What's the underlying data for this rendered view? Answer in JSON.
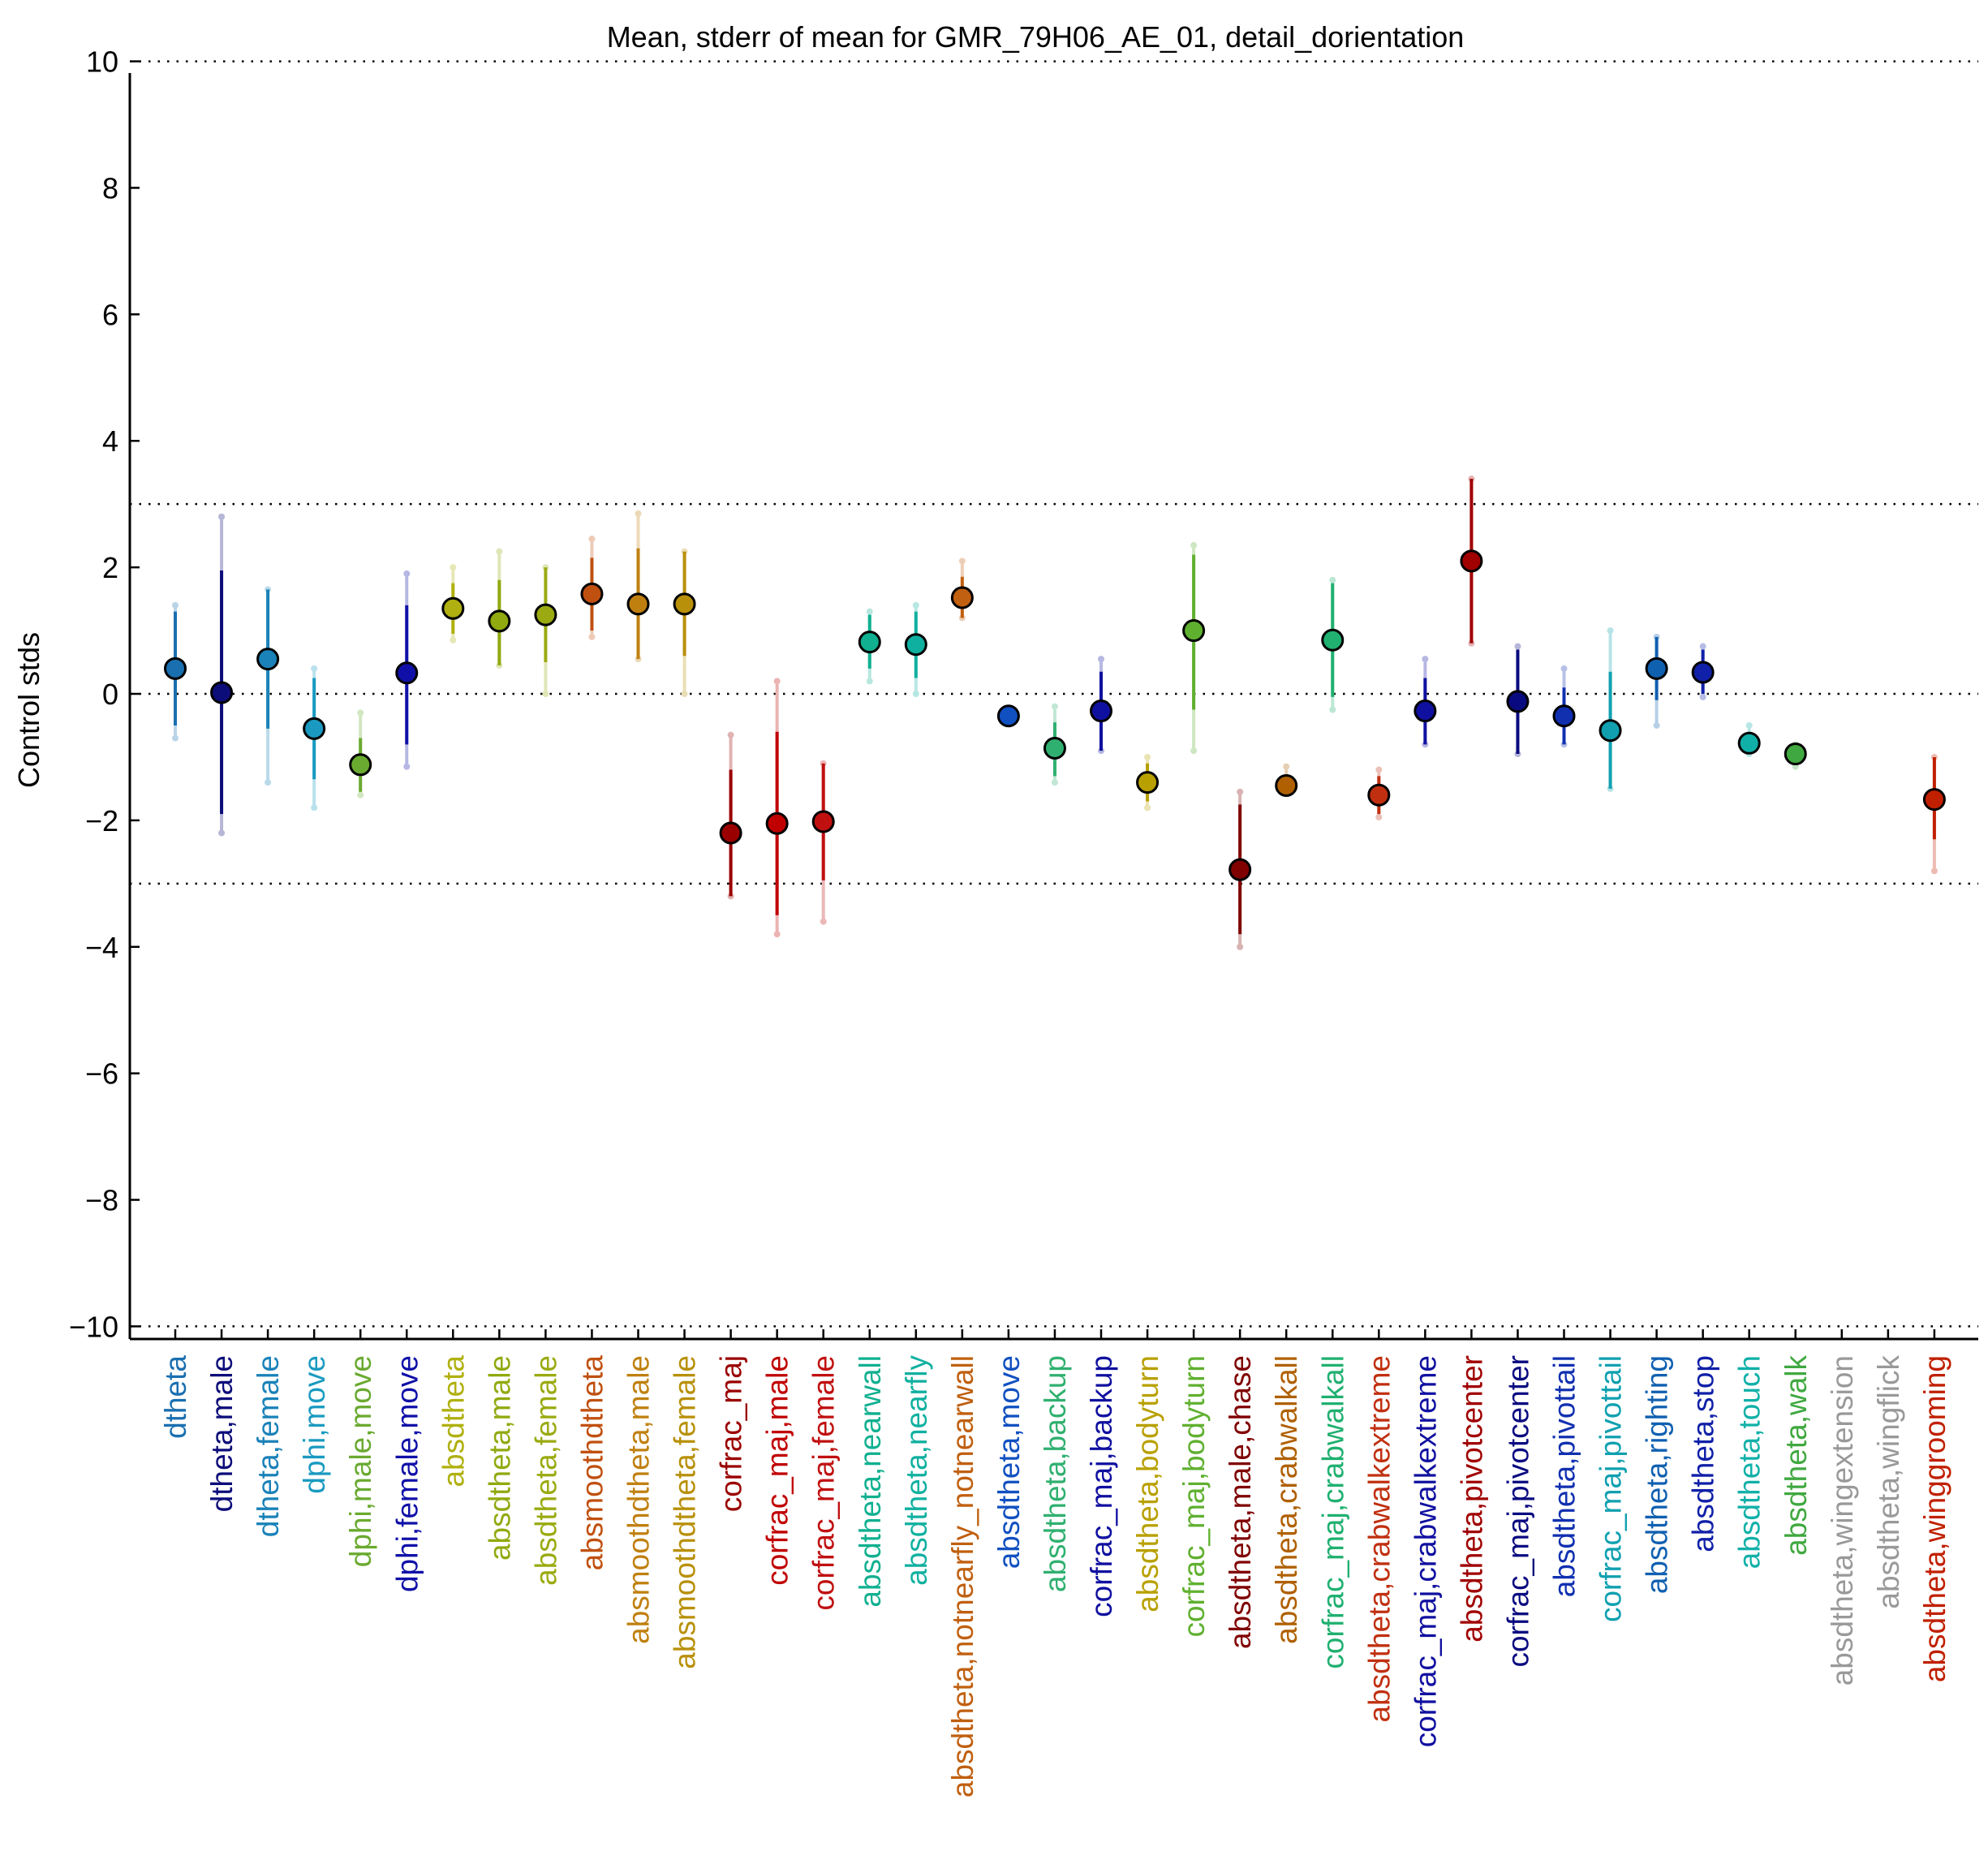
{
  "chart_data": {
    "type": "scatter",
    "title": "Mean, stderr of mean for GMR_79H06_AE_01, detail_dorientation",
    "xlabel": "",
    "ylabel": "Control stds",
    "ylim": [
      -10.2,
      10.2
    ],
    "yticks": [
      10,
      8,
      6,
      4,
      2,
      0,
      -2,
      -4,
      -6,
      -8,
      -10
    ],
    "ytick_labels": [
      "10",
      "8",
      "6",
      "4",
      "2",
      "0",
      "−2",
      "−4",
      "−6",
      "−8",
      "−10"
    ],
    "reference_lines": [
      10,
      3,
      0,
      -3,
      -10
    ],
    "grid": false,
    "points": [
      {
        "label": "dtheta",
        "color": "#1a6fb0",
        "mean": 0.4,
        "se_lo": -0.5,
        "se_hi": 1.3,
        "ci_lo": -0.7,
        "ci_hi": 1.4
      },
      {
        "label": "dtheta,male",
        "color": "#0d0d7a",
        "mean": 0.02,
        "se_lo": -1.9,
        "se_hi": 1.95,
        "ci_lo": -2.2,
        "ci_hi": 2.8
      },
      {
        "label": "dtheta,female",
        "color": "#1a82b8",
        "mean": 0.55,
        "se_lo": -0.55,
        "se_hi": 1.65,
        "ci_lo": -1.4,
        "ci_hi": 1.65
      },
      {
        "label": "dphi,move",
        "color": "#1a9ac0",
        "mean": -0.55,
        "se_lo": -1.35,
        "se_hi": 0.25,
        "ci_lo": -1.8,
        "ci_hi": 0.4
      },
      {
        "label": "dphi,male,move",
        "color": "#6aaa30",
        "mean": -1.12,
        "se_lo": -1.55,
        "se_hi": -0.7,
        "ci_lo": -1.6,
        "ci_hi": -0.3
      },
      {
        "label": "dphi,female,move",
        "color": "#1010a8",
        "mean": 0.33,
        "se_lo": -0.8,
        "se_hi": 1.4,
        "ci_lo": -1.15,
        "ci_hi": 1.9
      },
      {
        "label": "absdtheta",
        "color": "#b0b010",
        "mean": 1.35,
        "se_lo": 0.95,
        "se_hi": 1.75,
        "ci_lo": 0.85,
        "ci_hi": 2.0
      },
      {
        "label": "absdtheta,male",
        "color": "#90aa10",
        "mean": 1.15,
        "se_lo": 0.45,
        "se_hi": 1.8,
        "ci_lo": 0.45,
        "ci_hi": 2.25
      },
      {
        "label": "absdtheta,female",
        "color": "#9aaa10",
        "mean": 1.25,
        "se_lo": 0.5,
        "se_hi": 2.0,
        "ci_lo": 0.0,
        "ci_hi": 2.0
      },
      {
        "label": "absmoothdtheta",
        "color": "#c05010",
        "mean": 1.58,
        "se_lo": 1.0,
        "se_hi": 2.15,
        "ci_lo": 0.9,
        "ci_hi": 2.45
      },
      {
        "label": "absmoothdtheta,male",
        "color": "#c08010",
        "mean": 1.42,
        "se_lo": 0.55,
        "se_hi": 2.3,
        "ci_lo": 0.55,
        "ci_hi": 2.85
      },
      {
        "label": "absmoothdtheta,female",
        "color": "#b8900a",
        "mean": 1.42,
        "se_lo": 0.6,
        "se_hi": 2.25,
        "ci_lo": 0.0,
        "ci_hi": 2.25
      },
      {
        "label": "corfrac_maj",
        "color": "#9a0000",
        "mean": -2.2,
        "se_lo": -3.2,
        "se_hi": -1.2,
        "ci_lo": -3.2,
        "ci_hi": -0.65
      },
      {
        "label": "corfrac_maj,male",
        "color": "#c00000",
        "mean": -2.05,
        "se_lo": -3.5,
        "se_hi": -0.6,
        "ci_lo": -3.8,
        "ci_hi": 0.2
      },
      {
        "label": "corfrac_maj,female",
        "color": "#c01010",
        "mean": -2.02,
        "se_lo": -2.95,
        "se_hi": -1.1,
        "ci_lo": -3.6,
        "ci_hi": -1.1
      },
      {
        "label": "absdtheta,nearwall",
        "color": "#10b090",
        "mean": 0.82,
        "se_lo": 0.4,
        "se_hi": 1.25,
        "ci_lo": 0.2,
        "ci_hi": 1.3
      },
      {
        "label": "absdtheta,nearfly",
        "color": "#10b0a0",
        "mean": 0.78,
        "se_lo": 0.25,
        "se_hi": 1.3,
        "ci_lo": 0.0,
        "ci_hi": 1.4
      },
      {
        "label": "absdtheta,notnearfly_notnearwall",
        "color": "#c06010",
        "mean": 1.52,
        "se_lo": 1.2,
        "se_hi": 1.85,
        "ci_lo": 1.2,
        "ci_hi": 2.1
      },
      {
        "label": "absdtheta,move",
        "color": "#1050c0",
        "mean": -0.35,
        "se_lo": -0.4,
        "se_hi": -0.3,
        "ci_lo": -0.4,
        "ci_hi": -0.3
      },
      {
        "label": "absdtheta,backup",
        "color": "#30b070",
        "mean": -0.86,
        "se_lo": -1.3,
        "se_hi": -0.45,
        "ci_lo": -1.4,
        "ci_hi": -0.2
      },
      {
        "label": "corfrac_maj,backup",
        "color": "#1010a0",
        "mean": -0.27,
        "se_lo": -0.9,
        "se_hi": 0.35,
        "ci_lo": -0.9,
        "ci_hi": 0.55
      },
      {
        "label": "absdtheta,bodyturn",
        "color": "#b8a000",
        "mean": -1.4,
        "se_lo": -1.7,
        "se_hi": -1.1,
        "ci_lo": -1.8,
        "ci_hi": -1.0
      },
      {
        "label": "corfrac_maj,bodyturn",
        "color": "#60b030",
        "mean": 1.0,
        "se_lo": -0.25,
        "se_hi": 2.2,
        "ci_lo": -0.9,
        "ci_hi": 2.35
      },
      {
        "label": "absdtheta,male,chase",
        "color": "#800000",
        "mean": -2.78,
        "se_lo": -3.8,
        "se_hi": -1.75,
        "ci_lo": -4.0,
        "ci_hi": -1.55
      },
      {
        "label": "absdtheta,crabwalkall",
        "color": "#b06000",
        "mean": -1.45,
        "se_lo": -1.55,
        "se_hi": -1.35,
        "ci_lo": -1.55,
        "ci_hi": -1.15
      },
      {
        "label": "corfrac_maj,crabwalkall",
        "color": "#20b070",
        "mean": 0.85,
        "se_lo": -0.05,
        "se_hi": 1.75,
        "ci_lo": -0.25,
        "ci_hi": 1.8
      },
      {
        "label": "absdtheta,crabwalkextreme",
        "color": "#c03010",
        "mean": -1.6,
        "se_lo": -1.9,
        "se_hi": -1.3,
        "ci_lo": -1.95,
        "ci_hi": -1.2
      },
      {
        "label": "corfrac_maj,crabwalkextreme",
        "color": "#1010a0",
        "mean": -0.27,
        "se_lo": -0.8,
        "se_hi": 0.25,
        "ci_lo": -0.8,
        "ci_hi": 0.55
      },
      {
        "label": "absdtheta,pivotcenter",
        "color": "#a00000",
        "mean": 2.1,
        "se_lo": 0.8,
        "se_hi": 3.4,
        "ci_lo": 0.8,
        "ci_hi": 3.4
      },
      {
        "label": "corfrac_maj,pivotcenter",
        "color": "#0a0a80",
        "mean": -0.12,
        "se_lo": -0.95,
        "se_hi": 0.7,
        "ci_lo": -0.95,
        "ci_hi": 0.75
      },
      {
        "label": "absdtheta,pivottail",
        "color": "#1030b0",
        "mean": -0.35,
        "se_lo": -0.8,
        "se_hi": 0.1,
        "ci_lo": -0.8,
        "ci_hi": 0.4
      },
      {
        "label": "corfrac_maj,pivottail",
        "color": "#10a0b0",
        "mean": -0.58,
        "se_lo": -1.5,
        "se_hi": 0.35,
        "ci_lo": -1.5,
        "ci_hi": 1.0
      },
      {
        "label": "absdtheta,righting",
        "color": "#1060b0",
        "mean": 0.4,
        "se_lo": -0.1,
        "se_hi": 0.9,
        "ci_lo": -0.5,
        "ci_hi": 0.9
      },
      {
        "label": "absdtheta,stop",
        "color": "#1020a8",
        "mean": 0.34,
        "se_lo": 0.0,
        "se_hi": 0.7,
        "ci_lo": -0.05,
        "ci_hi": 0.75
      },
      {
        "label": "absdtheta,touch",
        "color": "#10b0a8",
        "mean": -0.78,
        "se_lo": -0.85,
        "se_hi": -0.6,
        "ci_lo": -0.95,
        "ci_hi": -0.5
      },
      {
        "label": "absdtheta,walk",
        "color": "#40a840",
        "mean": -0.95,
        "se_lo": -1.05,
        "se_hi": -0.85,
        "ci_lo": -1.15,
        "ci_hi": -0.8
      },
      {
        "label": "absdtheta,wingextension",
        "color": "#999999",
        "mean": null,
        "se_lo": null,
        "se_hi": null,
        "ci_lo": null,
        "ci_hi": null
      },
      {
        "label": "absdtheta,wingflick",
        "color": "#999999",
        "mean": null,
        "se_lo": null,
        "se_hi": null,
        "ci_lo": null,
        "ci_hi": null
      },
      {
        "label": "absdtheta,winggrooming",
        "color": "#c02000",
        "mean": -1.67,
        "se_lo": -2.3,
        "se_hi": -1.0,
        "ci_lo": -2.8,
        "ci_hi": -1.0
      }
    ]
  }
}
